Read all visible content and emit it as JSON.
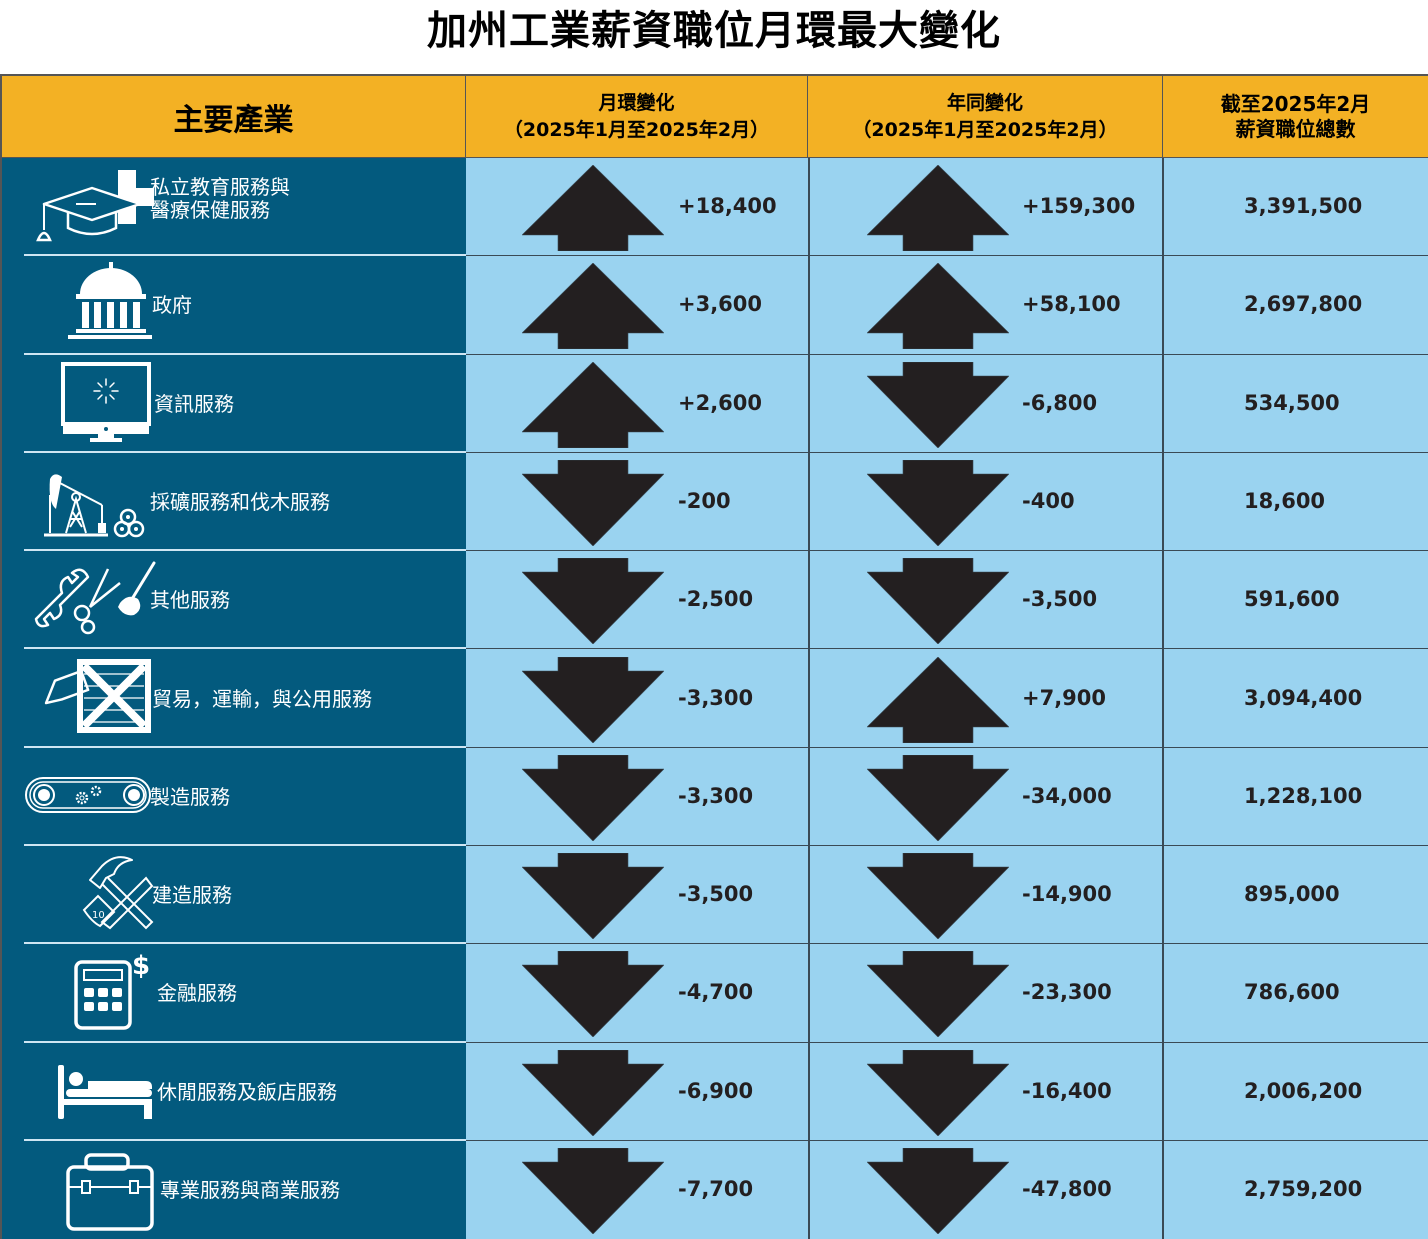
{
  "title": "加州工業薪資職位月環最大變化",
  "colors": {
    "header_bg": "#F3B124",
    "industry_bg": "#035A7E",
    "data_bg": "#9AD3F0",
    "arrow": "#231F20",
    "label_text": "#FFFFFF"
  },
  "headers": {
    "industry": "主要產業",
    "mom_line1": "月環變化",
    "mom_line2": "（2025年1月至2025年2月）",
    "yoy_line1": "年同變化",
    "yoy_line2": "（2025年1月至2025年2月）",
    "total_line1": "截至2025年2月",
    "total_line2": "薪資職位總數"
  },
  "rows": [
    {
      "label_line1": "私立教育服務與",
      "label_line2": "醫療保健服務",
      "icon": "graduation-cap-medical-cross-icon",
      "mom": "+18,400",
      "mom_dir": "up",
      "yoy": "+159,300",
      "yoy_dir": "up",
      "total": "3,391,500"
    },
    {
      "label_line1": "政府",
      "label_line2": "",
      "icon": "capitol-building-icon",
      "mom": "+3,600",
      "mom_dir": "up",
      "yoy": "+58,100",
      "yoy_dir": "up",
      "total": "2,697,800"
    },
    {
      "label_line1": "資訊服務",
      "label_line2": "",
      "icon": "computer-monitor-icon",
      "mom": "+2,600",
      "mom_dir": "up",
      "yoy": "-6,800",
      "yoy_dir": "down",
      "total": "534,500"
    },
    {
      "label_line1": "採礦服務和伐木服務",
      "label_line2": "",
      "icon": "oil-pump-logs-icon",
      "mom": "-200",
      "mom_dir": "down",
      "yoy": "-400",
      "yoy_dir": "down",
      "total": "18,600"
    },
    {
      "label_line1": "其他服務",
      "label_line2": "",
      "icon": "wrench-scissors-brush-icon",
      "mom": "-2,500",
      "mom_dir": "down",
      "yoy": "-3,500",
      "yoy_dir": "down",
      "total": "591,600"
    },
    {
      "label_line1": "貿易，運輸，與公用服務",
      "label_line2": "",
      "icon": "crate-tag-icon",
      "mom": "-3,300",
      "mom_dir": "down",
      "yoy": "+7,900",
      "yoy_dir": "up",
      "total": "3,094,400"
    },
    {
      "label_line1": "製造服務",
      "label_line2": "",
      "icon": "conveyor-gears-icon",
      "mom": "-3,300",
      "mom_dir": "down",
      "yoy": "-34,000",
      "yoy_dir": "down",
      "total": "1,228,100"
    },
    {
      "label_line1": "建造服務",
      "label_line2": "",
      "icon": "hammer-saw-icon",
      "mom": "-3,500",
      "mom_dir": "down",
      "yoy": "-14,900",
      "yoy_dir": "down",
      "total": "895,000"
    },
    {
      "label_line1": "金融服務",
      "label_line2": "",
      "icon": "calculator-dollar-icon",
      "mom": "-4,700",
      "mom_dir": "down",
      "yoy": "-23,300",
      "yoy_dir": "down",
      "total": "786,600"
    },
    {
      "label_line1": "休閒服務及飯店服務",
      "label_line2": "",
      "icon": "bed-icon",
      "mom": "-6,900",
      "mom_dir": "down",
      "yoy": "-16,400",
      "yoy_dir": "down",
      "total": "2,006,200"
    },
    {
      "label_line1": "專業服務與商業服務",
      "label_line2": "",
      "icon": "briefcase-icon",
      "mom": "-7,700",
      "mom_dir": "down",
      "yoy": "-47,800",
      "yoy_dir": "down",
      "total": "2,759,200"
    }
  ],
  "chart_data": {
    "type": "table",
    "title": "加州工業薪資職位月環最大變化",
    "columns": [
      "主要產業",
      "月環變化（2025年1月至2025年2月）",
      "年同變化（2025年1月至2025年2月）",
      "截至2025年2月薪資職位總數"
    ],
    "categories": [
      "私立教育服務與醫療保健服務",
      "政府",
      "資訊服務",
      "採礦服務和伐木服務",
      "其他服務",
      "貿易，運輸，與公用服務",
      "製造服務",
      "建造服務",
      "金融服務",
      "休閒服務及飯店服務",
      "專業服務與商業服務"
    ],
    "series": [
      {
        "name": "月環變化（2025年1月至2025年2月）",
        "values": [
          18400,
          3600,
          2600,
          -200,
          -2500,
          -3300,
          -3300,
          -3500,
          -4700,
          -6900,
          -7700
        ]
      },
      {
        "name": "年同變化（2025年1月至2025年2月）",
        "values": [
          159300,
          58100,
          -6800,
          -400,
          -3500,
          7900,
          -34000,
          -14900,
          -23300,
          -16400,
          -47800
        ]
      },
      {
        "name": "截至2025年2月薪資職位總數",
        "values": [
          3391500,
          2697800,
          534500,
          18600,
          591600,
          3094400,
          1228100,
          895000,
          786600,
          2006200,
          2759200
        ]
      }
    ]
  }
}
